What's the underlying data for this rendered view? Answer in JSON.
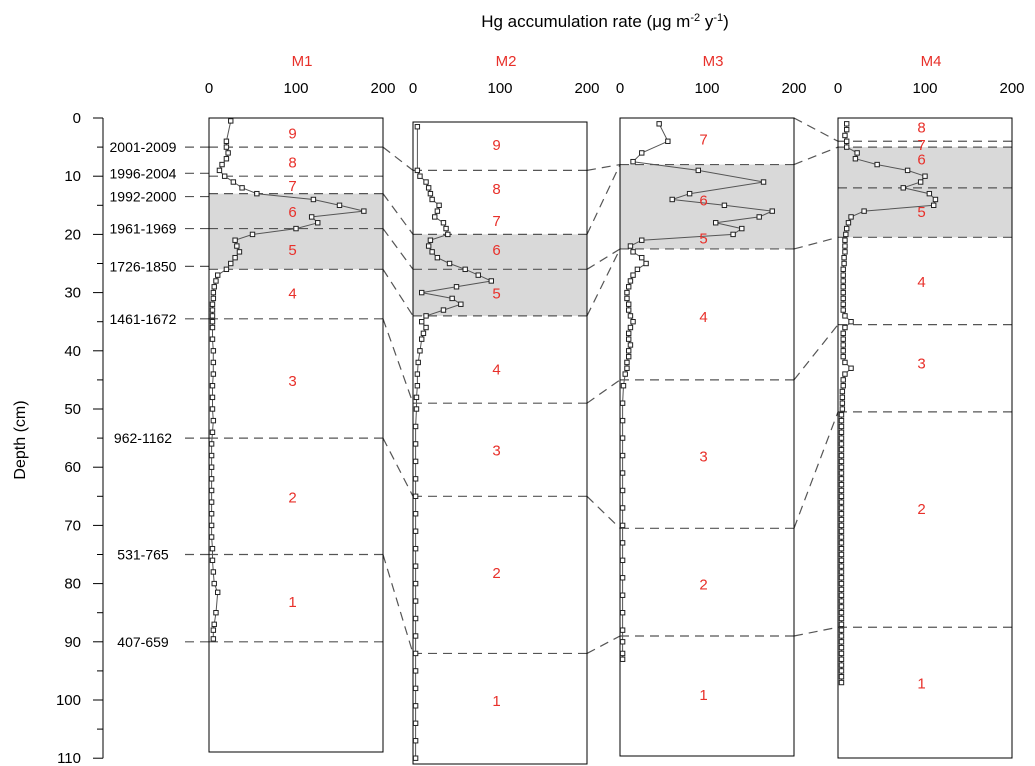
{
  "chart_data": {
    "type": "line",
    "title": "Hg accumulation rate (μg m-2 y-1)",
    "title_parts": {
      "main": "Hg accumulation rate (μg m",
      "sup1": "-2",
      "mid": " y",
      "sup2": "-1",
      "end": ")"
    },
    "ylabel": "Depth (cm)",
    "ylim": [
      0,
      110
    ],
    "y_inverted": true,
    "y_ticks": [
      "0",
      "10",
      "20",
      "30",
      "40",
      "50",
      "60",
      "70",
      "80",
      "90",
      "100",
      "110"
    ],
    "x_ticks": [
      "0",
      "100",
      "200"
    ],
    "xlim": [
      0,
      200
    ],
    "colors": {
      "zone": "#e8302a",
      "panel_name": "#e8302a",
      "shade": "#d9d9d9",
      "line": "#555555",
      "marker": "#222222"
    },
    "date_labels": [
      {
        "text": "2001-2009",
        "depth": 5
      },
      {
        "text": "1996-2004",
        "depth": 9.5
      },
      {
        "text": "1992-2000",
        "depth": 13.5
      },
      {
        "text": "1961-1969",
        "depth": 19
      },
      {
        "text": "1726-1850",
        "depth": 25.5
      },
      {
        "text": "1461-1672",
        "depth": 34.5
      },
      {
        "text": "962-1162",
        "depth": 55
      },
      {
        "text": "531-765",
        "depth": 75
      },
      {
        "text": "407-659",
        "depth": 90
      }
    ],
    "cores": [
      {
        "name": "M1",
        "depth_max": 110,
        "shade": [
          13,
          26
        ],
        "boundaries": [
          5,
          10,
          13,
          19,
          26,
          34.5,
          55,
          75,
          90
        ],
        "zones": [
          {
            "label": "9",
            "depth": 2.5
          },
          {
            "label": "8",
            "depth": 7.5
          },
          {
            "label": "7",
            "depth": 11.5
          },
          {
            "label": "6",
            "depth": 16
          },
          {
            "label": "5",
            "depth": 22.5
          },
          {
            "label": "4",
            "depth": 30
          },
          {
            "label": "3",
            "depth": 45
          },
          {
            "label": "2",
            "depth": 65
          },
          {
            "label": "1",
            "depth": 83
          }
        ],
        "depth": [
          0.5,
          4,
          5,
          6,
          7,
          8,
          9,
          10,
          11,
          12,
          13,
          14,
          15,
          16,
          17,
          18,
          19,
          20,
          21,
          22,
          23,
          24,
          25,
          26,
          27,
          28,
          29,
          30,
          31,
          32,
          33,
          34,
          35,
          36,
          38,
          40,
          42,
          44,
          46,
          48,
          50,
          52,
          54,
          56,
          58,
          60,
          62,
          64,
          66,
          68,
          70,
          72,
          74,
          76,
          78,
          80,
          81.5,
          85,
          87,
          88,
          89.5
        ],
        "values": [
          25,
          20,
          20,
          22,
          20,
          15,
          12,
          18,
          28,
          38,
          55,
          120,
          150,
          178,
          118,
          125,
          100,
          50,
          30,
          32,
          35,
          30,
          25,
          20,
          10,
          8,
          6,
          5,
          5,
          4,
          4,
          4,
          4,
          4,
          4,
          5,
          5,
          5,
          4,
          4,
          4,
          5,
          4,
          3,
          3,
          3,
          3,
          3,
          3,
          3,
          3,
          3,
          4,
          4,
          5,
          6,
          10,
          8,
          6,
          5,
          5
        ]
      },
      {
        "name": "M2",
        "depth_max": 110,
        "shade": [
          20,
          34
        ],
        "boundaries": [
          9,
          20,
          26,
          34,
          49,
          65,
          92
        ],
        "zones": [
          {
            "label": "9",
            "depth": 4.5
          },
          {
            "label": "8",
            "depth": 12
          },
          {
            "label": "7",
            "depth": 17.5
          },
          {
            "label": "6",
            "depth": 22.5
          },
          {
            "label": "5",
            "depth": 30
          },
          {
            "label": "4",
            "depth": 43
          },
          {
            "label": "3",
            "depth": 57
          },
          {
            "label": "2",
            "depth": 78
          },
          {
            "label": "1",
            "depth": 100
          }
        ],
        "depth": [
          1.5,
          9,
          10,
          11,
          12,
          13,
          14,
          15,
          16,
          17,
          18,
          19,
          20,
          21,
          22,
          23,
          24,
          25,
          26,
          27,
          28,
          29,
          30,
          31,
          32,
          33,
          34,
          35,
          36,
          37,
          38,
          40,
          42,
          44,
          46,
          48,
          50,
          53,
          56,
          59,
          62,
          65,
          68,
          71,
          74,
          77,
          80,
          83,
          86,
          89,
          92,
          95,
          98,
          101,
          104,
          107,
          110
        ],
        "values": [
          5,
          5,
          8,
          15,
          18,
          20,
          22,
          30,
          28,
          25,
          35,
          38,
          40,
          20,
          18,
          22,
          28,
          42,
          60,
          75,
          90,
          50,
          10,
          45,
          55,
          35,
          15,
          10,
          15,
          12,
          10,
          8,
          6,
          5,
          5,
          4,
          4,
          3,
          3,
          3,
          3,
          3,
          3,
          3,
          3,
          3,
          3,
          3,
          3,
          3,
          3,
          3,
          3,
          3,
          3,
          3,
          3
        ]
      },
      {
        "name": "M3",
        "depth_max": 110,
        "shade": [
          8,
          22.5
        ],
        "boundaries": [
          8,
          22.5,
          45,
          70.5,
          89
        ],
        "zones": [
          {
            "label": "7",
            "depth": 3.5
          },
          {
            "label": "6",
            "depth": 14
          },
          {
            "label": "5",
            "depth": 20.5
          },
          {
            "label": "4",
            "depth": 34
          },
          {
            "label": "3",
            "depth": 58
          },
          {
            "label": "2",
            "depth": 80
          },
          {
            "label": "1",
            "depth": 99
          }
        ],
        "depth": [
          1,
          4,
          6,
          7.5,
          9,
          11,
          13,
          14,
          15,
          16,
          17,
          18,
          19,
          20,
          21,
          22,
          23,
          24,
          25,
          26,
          27,
          28,
          29,
          30,
          31,
          32,
          33,
          34,
          35,
          36,
          37,
          38,
          39,
          40,
          41,
          42,
          43,
          44,
          46,
          49,
          52,
          55,
          58,
          61,
          64,
          67,
          70,
          73,
          76,
          79,
          82,
          85,
          88,
          90,
          92,
          93
        ],
        "values": [
          45,
          55,
          25,
          15,
          90,
          165,
          80,
          60,
          120,
          175,
          160,
          110,
          140,
          130,
          25,
          12,
          15,
          25,
          30,
          20,
          15,
          12,
          10,
          8,
          8,
          10,
          10,
          12,
          15,
          12,
          10,
          10,
          12,
          10,
          10,
          8,
          8,
          6,
          4,
          3,
          3,
          3,
          3,
          3,
          3,
          3,
          3,
          3,
          3,
          3,
          3,
          3,
          3,
          3,
          3,
          3
        ]
      },
      {
        "name": "M4",
        "depth_max": 110,
        "shade": [
          5,
          20.5
        ],
        "boundaries": [
          4,
          5,
          12,
          20.5,
          35.5,
          50.5,
          87.5
        ],
        "zones": [
          {
            "label": "8",
            "depth": 1.5
          },
          {
            "label": "7",
            "depth": 4.5
          },
          {
            "label": "6",
            "depth": 7
          },
          {
            "label": "5",
            "depth": 16
          },
          {
            "label": "4",
            "depth": 28
          },
          {
            "label": "3",
            "depth": 42
          },
          {
            "label": "2",
            "depth": 67
          },
          {
            "label": "1",
            "depth": 97
          }
        ],
        "depth": [
          1,
          2,
          3,
          4,
          5,
          6,
          7,
          8,
          9,
          10,
          11,
          12,
          13,
          14,
          15,
          16,
          17,
          18,
          19,
          20,
          21,
          22,
          23,
          24,
          25,
          26,
          27,
          28,
          29,
          30,
          31,
          32,
          33,
          34,
          35,
          36,
          37,
          38,
          39,
          40,
          41,
          42,
          43,
          44,
          45,
          46,
          47,
          48,
          49,
          50,
          51,
          52,
          53,
          54,
          55,
          56,
          57,
          58,
          59,
          60,
          61,
          62,
          63,
          64,
          65,
          66,
          67,
          68,
          69,
          70,
          71,
          72,
          73,
          74,
          75,
          76,
          77,
          78,
          79,
          80,
          81,
          82,
          83,
          84,
          85,
          86,
          87,
          88,
          89,
          90,
          91,
          92,
          93,
          94,
          95,
          96,
          97
        ],
        "values": [
          10,
          10,
          8,
          10,
          10,
          22,
          20,
          45,
          80,
          100,
          95,
          75,
          105,
          112,
          110,
          30,
          15,
          12,
          10,
          9,
          8,
          8,
          8,
          7,
          7,
          6,
          6,
          6,
          6,
          6,
          6,
          6,
          6,
          8,
          15,
          8,
          6,
          6,
          6,
          6,
          6,
          8,
          15,
          8,
          6,
          6,
          5,
          5,
          5,
          5,
          4,
          4,
          4,
          4,
          4,
          4,
          4,
          4,
          4,
          4,
          4,
          4,
          4,
          4,
          4,
          4,
          4,
          4,
          4,
          4,
          4,
          4,
          4,
          4,
          4,
          4,
          4,
          4,
          4,
          4,
          4,
          4,
          4,
          4,
          4,
          4,
          4,
          4,
          4,
          4,
          4,
          4,
          4,
          4,
          4,
          4,
          4
        ]
      }
    ]
  }
}
